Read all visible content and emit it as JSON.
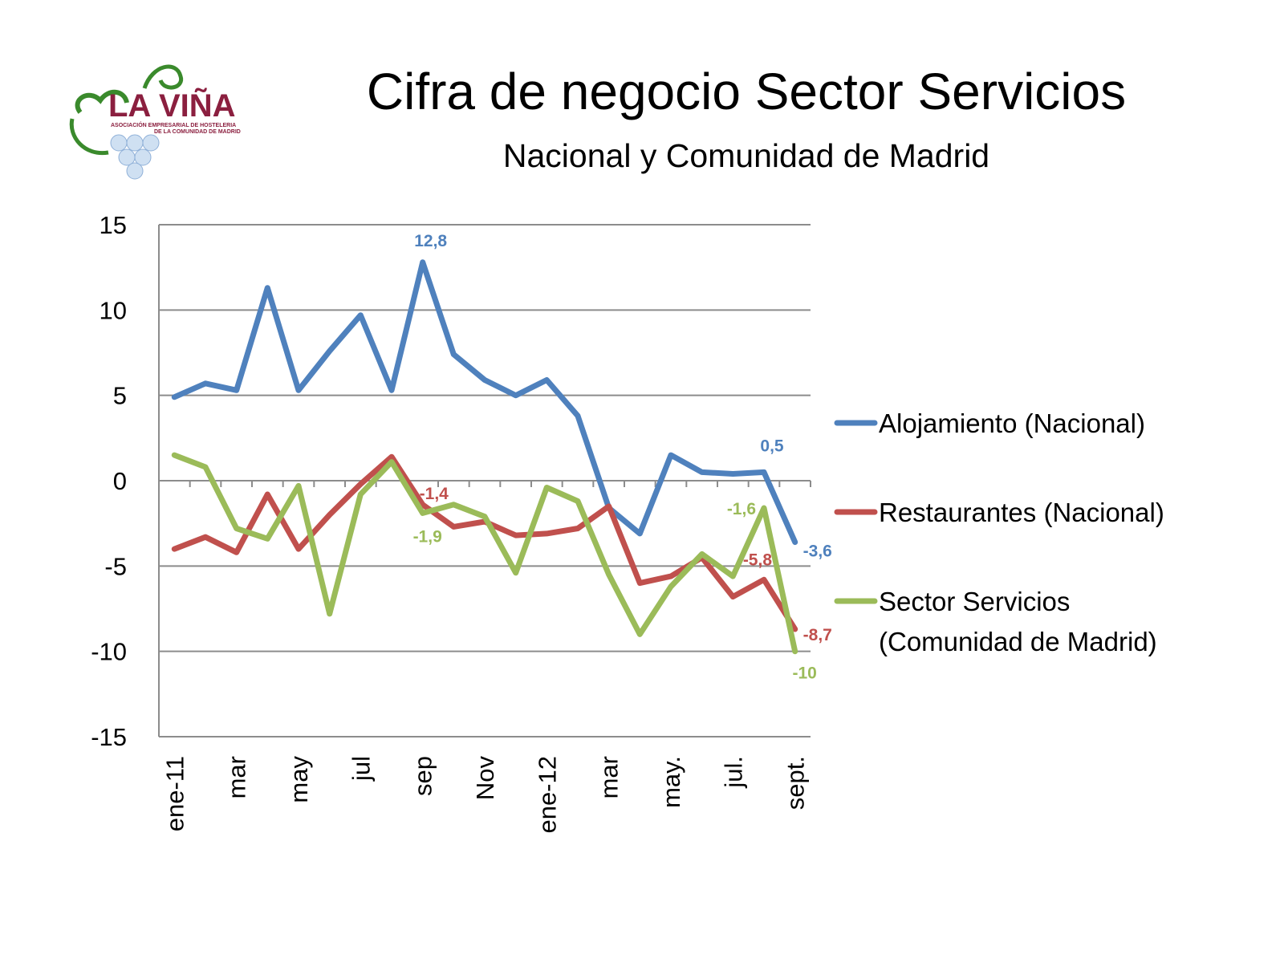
{
  "header": {
    "title": "Cifra de negocio Sector Servicios",
    "subtitle": "Nacional y Comunidad de Madrid"
  },
  "logo": {
    "name": "LA VIÑA",
    "tagline_1": "ASOCIACIÓN EMPRESARIAL DE HOSTELERIA",
    "tagline_2": "DE LA COMUNIDAD DE MADRID"
  },
  "colors": {
    "alojamiento": "#4f81bd",
    "restaurantes": "#c0504d",
    "servicios": "#9bbb59",
    "logo_red": "#8b1f3f",
    "logo_green": "#3a8a2c"
  },
  "chart_data": {
    "type": "line",
    "x_tick_labels": [
      "ene-11",
      "mar",
      "may",
      "jul",
      "sep",
      "Nov",
      "ene-12",
      "mar",
      "may.",
      "jul.",
      "sept."
    ],
    "ylim": [
      -15,
      15
    ],
    "y_ticks": [
      15,
      10,
      5,
      0,
      -5,
      -10,
      -15
    ],
    "grid": true,
    "legend_position": "right",
    "series": [
      {
        "name": "Alojamiento (Nacional)",
        "values": [
          4.9,
          5.7,
          5.3,
          11.3,
          5.3,
          7.6,
          9.7,
          5.3,
          12.8,
          7.4,
          5.9,
          5.0,
          5.9,
          3.8,
          -1.6,
          -3.1,
          1.5,
          0.5,
          0.4,
          0.5,
          -3.6
        ],
        "data_labels": [
          {
            "index": 8,
            "text": "12,8"
          },
          {
            "index": 19,
            "text": "0,5"
          },
          {
            "index": 20,
            "text": "-3,6"
          }
        ]
      },
      {
        "name": "Restaurantes (Nacional)",
        "values": [
          -4.0,
          -3.3,
          -4.2,
          -0.8,
          -4.0,
          -2.0,
          -0.2,
          1.4,
          -1.4,
          -2.7,
          -2.4,
          -3.2,
          -3.1,
          -2.8,
          -1.5,
          -6.0,
          -5.6,
          -4.5,
          -6.8,
          -5.8,
          -8.7
        ],
        "data_labels": [
          {
            "index": 8,
            "text": "-1,4"
          },
          {
            "index": 19,
            "text": "-5,8"
          },
          {
            "index": 20,
            "text": "-8,7"
          }
        ]
      },
      {
        "name": "Sector Servicios (Comunidad de Madrid)",
        "name_lines": [
          "Sector Servicios",
          "(Comunidad de Madrid)"
        ],
        "values": [
          1.5,
          0.8,
          -2.8,
          -3.4,
          -0.3,
          -7.8,
          -0.8,
          1.1,
          -1.9,
          -1.4,
          -2.1,
          -5.4,
          -0.4,
          -1.2,
          -5.5,
          -9.0,
          -6.2,
          -4.3,
          -5.6,
          -1.6,
          -10.0
        ],
        "data_labels": [
          {
            "index": 8,
            "text": "-1,9"
          },
          {
            "index": 19,
            "text": "-1,6"
          },
          {
            "index": 20,
            "text": "-10"
          }
        ]
      }
    ]
  }
}
